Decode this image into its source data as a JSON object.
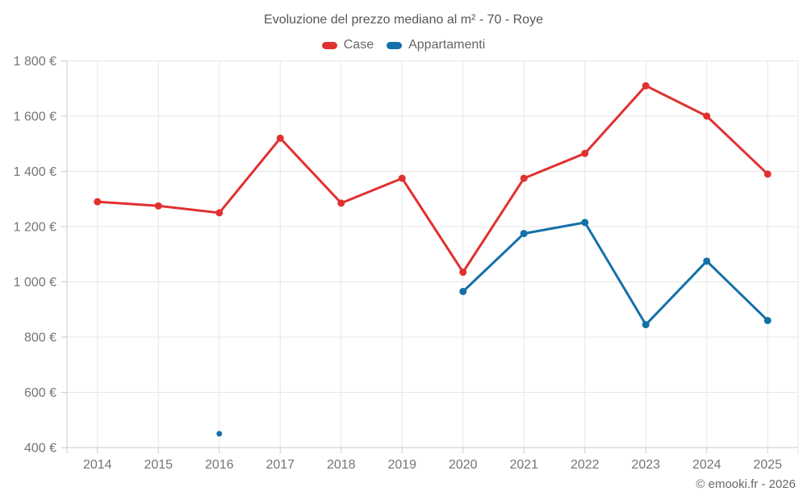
{
  "title": "Evoluzione del prezzo mediano al m² - 70 - Roye",
  "footer": "© emooki.fr - 2026",
  "legend": [
    {
      "label": "Case",
      "color": "#e13030"
    },
    {
      "label": "Appartamenti",
      "color": "#1470a8"
    }
  ],
  "chart_data": {
    "type": "line",
    "title": "Evoluzione del prezzo mediano al m² - 70 - Roye",
    "categories": [
      "2014",
      "2015",
      "2016",
      "2017",
      "2018",
      "2019",
      "2020",
      "2021",
      "2022",
      "2023",
      "2024",
      "2025"
    ],
    "series": [
      {
        "name": "Case",
        "color": "#e13030",
        "values": [
          1290,
          1275,
          1250,
          1520,
          1285,
          1375,
          1035,
          1375,
          1465,
          1710,
          1600,
          1390
        ]
      },
      {
        "name": "Appartamenti",
        "color": "#1470a8",
        "values": [
          null,
          null,
          450,
          null,
          null,
          null,
          965,
          1175,
          1215,
          845,
          1075,
          860
        ]
      }
    ],
    "xlabel": "",
    "ylabel": "",
    "ylim": [
      400,
      1800
    ],
    "ytick_step": 200,
    "ytick_suffix": " €",
    "grid": true,
    "legend_position": "top",
    "marker": "circle"
  },
  "colors": {
    "grid": "#e7e7e7",
    "axis": "#cccccc",
    "tick_label": "#757575",
    "background": "#ffffff"
  }
}
